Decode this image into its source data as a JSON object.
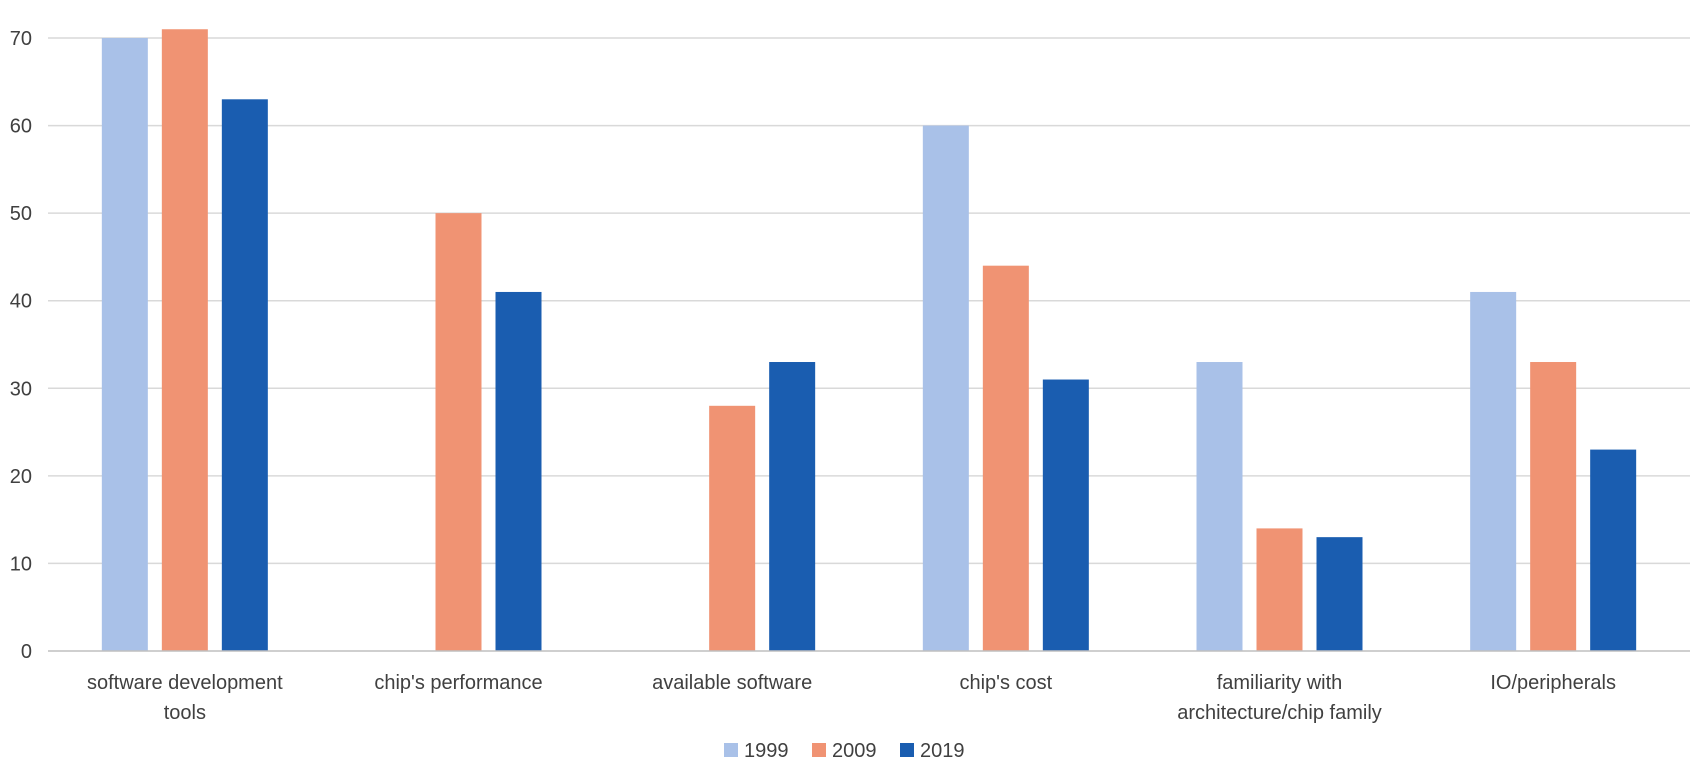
{
  "chart_data": {
    "type": "bar",
    "categories": [
      [
        "software development",
        "tools"
      ],
      [
        "chip's performance"
      ],
      [
        "available software"
      ],
      [
        "chip's cost"
      ],
      [
        "familiarity with",
        "architecture/chip family"
      ],
      [
        "IO/peripherals"
      ]
    ],
    "series": [
      {
        "name": "1999",
        "color": "#A9C1E8",
        "values": [
          70,
          0,
          0,
          60,
          33,
          41
        ]
      },
      {
        "name": "2009",
        "color": "#F09373",
        "values": [
          71,
          50,
          28,
          44,
          14,
          33
        ]
      },
      {
        "name": "2019",
        "color": "#1A5DB0",
        "values": [
          63,
          41,
          33,
          31,
          13,
          23
        ]
      }
    ],
    "ylim": [
      0,
      70
    ],
    "yticks": [
      0,
      10,
      20,
      30,
      40,
      50,
      60,
      70
    ],
    "grid": true,
    "legend": "bottom-center",
    "title": "",
    "xlabel": "",
    "ylabel": ""
  }
}
